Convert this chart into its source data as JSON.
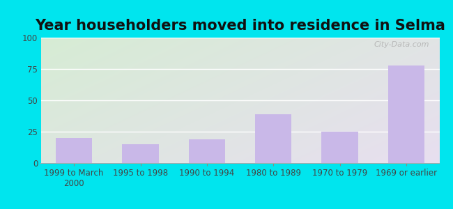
{
  "title": "Year householders moved into residence in Selma",
  "categories": [
    "1999 to March\n2000",
    "1995 to 1998",
    "1990 to 1994",
    "1980 to 1989",
    "1970 to 1979",
    "1969 or earlier"
  ],
  "values": [
    20,
    15,
    19,
    39,
    25,
    78
  ],
  "bar_color": "#c9b8e8",
  "ylim": [
    0,
    100
  ],
  "yticks": [
    0,
    25,
    50,
    75,
    100
  ],
  "background_outer": "#00e5ee",
  "background_inner_topleft": "#d6ecd4",
  "background_inner_bottomright": "#e8dff0",
  "grid_color": "#ffffff",
  "title_fontsize": 15,
  "tick_fontsize": 8.5,
  "watermark": "City-Data.com"
}
